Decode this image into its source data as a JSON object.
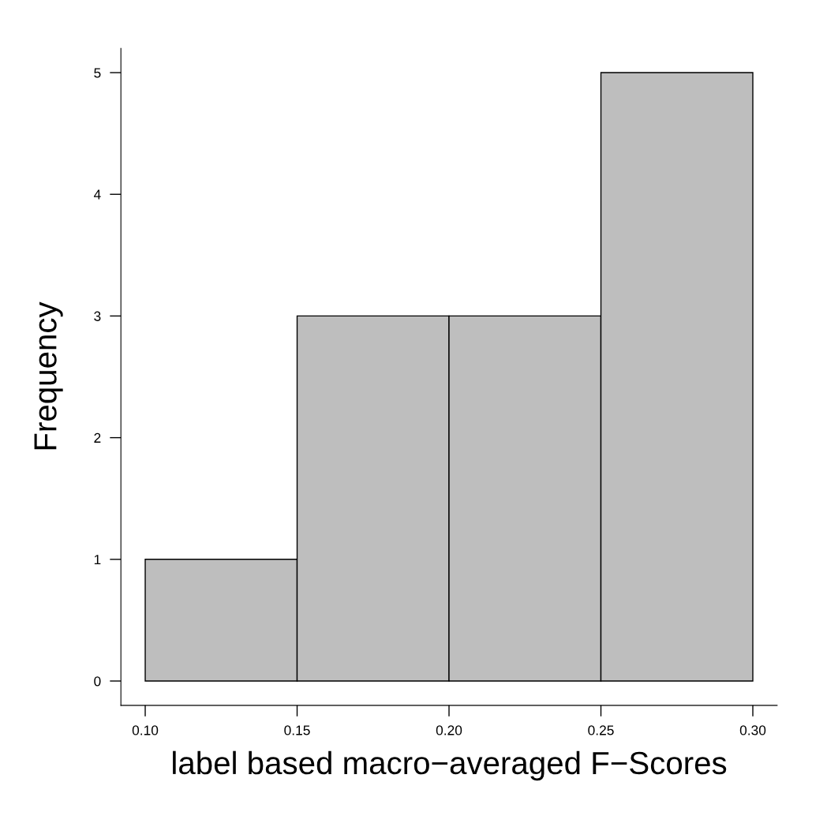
{
  "chart_data": {
    "type": "histogram",
    "xlabel": "label based macro−averaged F−Scores",
    "ylabel": "Frequency",
    "bins": [
      0.1,
      0.15,
      0.2,
      0.25,
      0.3
    ],
    "values": [
      1,
      3,
      3,
      5
    ],
    "color": "#bebebe",
    "xlim": [
      0.092,
      0.308
    ],
    "xticks": [
      {
        "value": 0.1,
        "label": "0.10"
      },
      {
        "value": 0.15,
        "label": "0.15"
      },
      {
        "value": 0.2,
        "label": "0.20"
      },
      {
        "value": 0.25,
        "label": "0.25"
      },
      {
        "value": 0.3,
        "label": "0.30"
      }
    ],
    "ylim": [
      -0.2,
      5.2
    ],
    "yticks": [
      0,
      1,
      2,
      3,
      4,
      5
    ],
    "grid": false
  }
}
